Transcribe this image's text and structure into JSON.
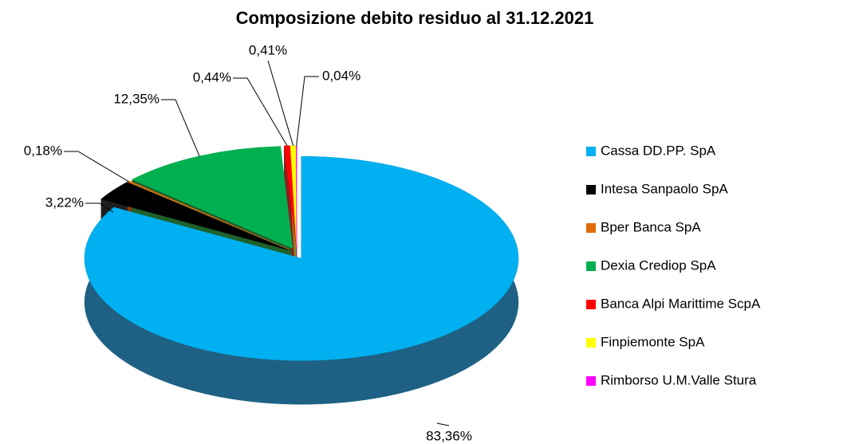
{
  "chart_data": {
    "type": "pie",
    "title": "Composizione debito residuo al 31.12.2021",
    "categories": [
      "Cassa DD.PP. SpA",
      "Intesa Sanpaolo SpA",
      "Bper Banca SpA",
      "Dexia Crediop SpA",
      "Banca Alpi Marittime ScpA",
      "Finpiemonte SpA",
      "Rimborso U.M.Valle Stura"
    ],
    "values": [
      83.36,
      3.22,
      0.18,
      12.35,
      0.44,
      0.41,
      0.04
    ],
    "value_labels": [
      "83,36%",
      "3,22%",
      "0,18%",
      "12,35%",
      "0,44%",
      "0,41%",
      "0,04%"
    ],
    "colors": [
      "#00b0f0",
      "#000000",
      "#e36c0a",
      "#00b050",
      "#ff0000",
      "#ffff00",
      "#ff00ff"
    ],
    "legend": "right"
  }
}
